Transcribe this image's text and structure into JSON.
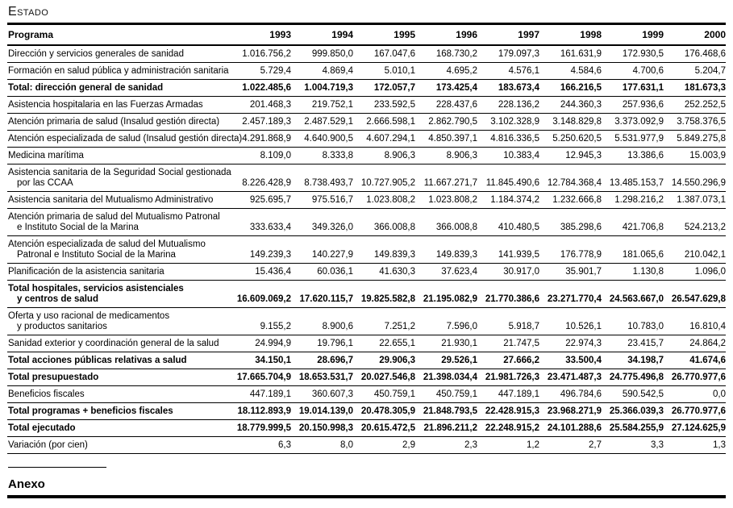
{
  "page": {
    "title": "Estado",
    "footer_heading": "Anexo"
  },
  "table": {
    "columns": [
      "Programa",
      "1993",
      "1994",
      "1995",
      "1996",
      "1997",
      "1998",
      "1999",
      "2000"
    ],
    "rows": [
      {
        "label": [
          "Dirección y servicios generales de sanidad"
        ],
        "bold": false,
        "values": [
          "1.016.756,2",
          "999.850,0",
          "167.047,6",
          "168.730,2",
          "179.097,3",
          "161.631,9",
          "172.930,5",
          "176.468,6"
        ]
      },
      {
        "label": [
          "Formación en salud pública y administración sanitaria"
        ],
        "bold": false,
        "values": [
          "5.729,4",
          "4.869,4",
          "5.010,1",
          "4.695,2",
          "4.576,1",
          "4.584,6",
          "4.700,6",
          "5.204,7"
        ]
      },
      {
        "label": [
          "Total: dirección general de sanidad"
        ],
        "bold": true,
        "values": [
          "1.022.485,6",
          "1.004.719,3",
          "172.057,7",
          "173.425,4",
          "183.673,4",
          "166.216,5",
          "177.631,1",
          "181.673,3"
        ]
      },
      {
        "label": [
          "Asistencia hospitalaria en las Fuerzas Armadas"
        ],
        "bold": false,
        "values": [
          "201.468,3",
          "219.752,1",
          "233.592,5",
          "228.437,6",
          "228.136,2",
          "244.360,3",
          "257.936,6",
          "252.252,5"
        ]
      },
      {
        "label": [
          "Atención primaria de salud (Insalud gestión directa)"
        ],
        "bold": false,
        "values": [
          "2.457.189,3",
          "2.487.529,1",
          "2.666.598,1",
          "2.862.790,5",
          "3.102.328,9",
          "3.148.829,8",
          "3.373.092,9",
          "3.758.376,5"
        ]
      },
      {
        "label": [
          "Atención especializada de salud (Insalud gestión directa)"
        ],
        "bold": false,
        "values": [
          "4.291.868,9",
          "4.640.900,5",
          "4.607.294,1",
          "4.850.397,1",
          "4.816.336,5",
          "5.250.620,5",
          "5.531.977,9",
          "5.849.275,8"
        ]
      },
      {
        "label": [
          "Medicina marítima"
        ],
        "bold": false,
        "values": [
          "8.109,0",
          "8.333,8",
          "8.906,3",
          "8.906,3",
          "10.383,4",
          "12.945,3",
          "13.386,6",
          "15.003,9"
        ]
      },
      {
        "label": [
          "Asistencia sanitaria de la Seguridad Social gestionada",
          "por las CCAA"
        ],
        "bold": false,
        "values": [
          "8.226.428,9",
          "8.738.493,7",
          "10.727.905,2",
          "11.667.271,7",
          "11.845.490,6",
          "12.784.368,4",
          "13.485.153,7",
          "14.550.296,9"
        ]
      },
      {
        "label": [
          "Asistencia sanitaria del Mutualismo Administrativo"
        ],
        "bold": false,
        "values": [
          "925.695,7",
          "975.516,7",
          "1.023.808,2",
          "1.023.808,2",
          "1.184.374,2",
          "1.232.666,8",
          "1.298.216,2",
          "1.387.073,1"
        ]
      },
      {
        "label": [
          "Atención primaria de salud del Mutualismo Patronal",
          "e Instituto Social de la Marina"
        ],
        "bold": false,
        "values": [
          "333.633,4",
          "349.326,0",
          "366.008,8",
          "366.008,8",
          "410.480,5",
          "385.298,6",
          "421.706,8",
          "524.213,2"
        ]
      },
      {
        "label": [
          "Atención especializada de salud del Mutualismo",
          "Patronal e Instituto Social de la Marina"
        ],
        "bold": false,
        "values": [
          "149.239,3",
          "140.227,9",
          "149.839,3",
          "149.839,3",
          "141.939,5",
          "176.778,9",
          "181.065,6",
          "210.042,1"
        ]
      },
      {
        "label": [
          "Planificación de la asistencia sanitaria"
        ],
        "bold": false,
        "values": [
          "15.436,4",
          "60.036,1",
          "41.630,3",
          "37.623,4",
          "30.917,0",
          "35.901,7",
          "1.130,8",
          "1.096,0"
        ]
      },
      {
        "label": [
          "Total hospitales, servicios asistenciales",
          "y centros de salud"
        ],
        "bold": true,
        "values": [
          "16.609.069,2",
          "17.620.115,7",
          "19.825.582,8",
          "21.195.082,9",
          "21.770.386,6",
          "23.271.770,4",
          "24.563.667,0",
          "26.547.629,8"
        ]
      },
      {
        "label": [
          "Oferta y uso racional de medicamentos",
          "y productos sanitarios"
        ],
        "bold": false,
        "values": [
          "9.155,2",
          "8.900,6",
          "7.251,2",
          "7.596,0",
          "5.918,7",
          "10.526,1",
          "10.783,0",
          "16.810,4"
        ]
      },
      {
        "label": [
          "Sanidad exterior y coordinación general de la salud"
        ],
        "bold": false,
        "values": [
          "24.994,9",
          "19.796,1",
          "22.655,1",
          "21.930,1",
          "21.747,5",
          "22.974,3",
          "23.415,7",
          "24.864,2"
        ]
      },
      {
        "label": [
          "Total acciones públicas relativas a salud"
        ],
        "bold": true,
        "values": [
          "34.150,1",
          "28.696,7",
          "29.906,3",
          "29.526,1",
          "27.666,2",
          "33.500,4",
          "34.198,7",
          "41.674,6"
        ]
      },
      {
        "label": [
          "Total presupuestado"
        ],
        "bold": true,
        "values": [
          "17.665.704,9",
          "18.653.531,7",
          "20.027.546,8",
          "21.398.034,4",
          "21.981.726,3",
          "23.471.487,3",
          "24.775.496,8",
          "26.770.977,6"
        ]
      },
      {
        "label": [
          "Beneficios fiscales"
        ],
        "bold": false,
        "values": [
          "447.189,1",
          "360.607,3",
          "450.759,1",
          "450.759,1",
          "447.189,1",
          "496.784,6",
          "590.542,5",
          "0,0"
        ]
      },
      {
        "label": [
          "Total programas + beneficios fiscales"
        ],
        "bold": true,
        "values": [
          "18.112.893,9",
          "19.014.139,0",
          "20.478.305,9",
          "21.848.793,5",
          "22.428.915,3",
          "23.968.271,9",
          "25.366.039,3",
          "26.770.977,6"
        ]
      },
      {
        "label": [
          "Total ejecutado"
        ],
        "bold": true,
        "values": [
          "18.779.999,5",
          "20.150.998,3",
          "20.615.472,5",
          "21.896.211,2",
          "22.248.915,2",
          "24.101.288,6",
          "25.584.255,9",
          "27.124.625,9"
        ]
      },
      {
        "label": [
          "Variación (por cien)"
        ],
        "bold": false,
        "values": [
          "6,3",
          "8,0",
          "2,9",
          "2,3",
          "1,2",
          "2,7",
          "3,3",
          "1,3"
        ]
      }
    ]
  }
}
